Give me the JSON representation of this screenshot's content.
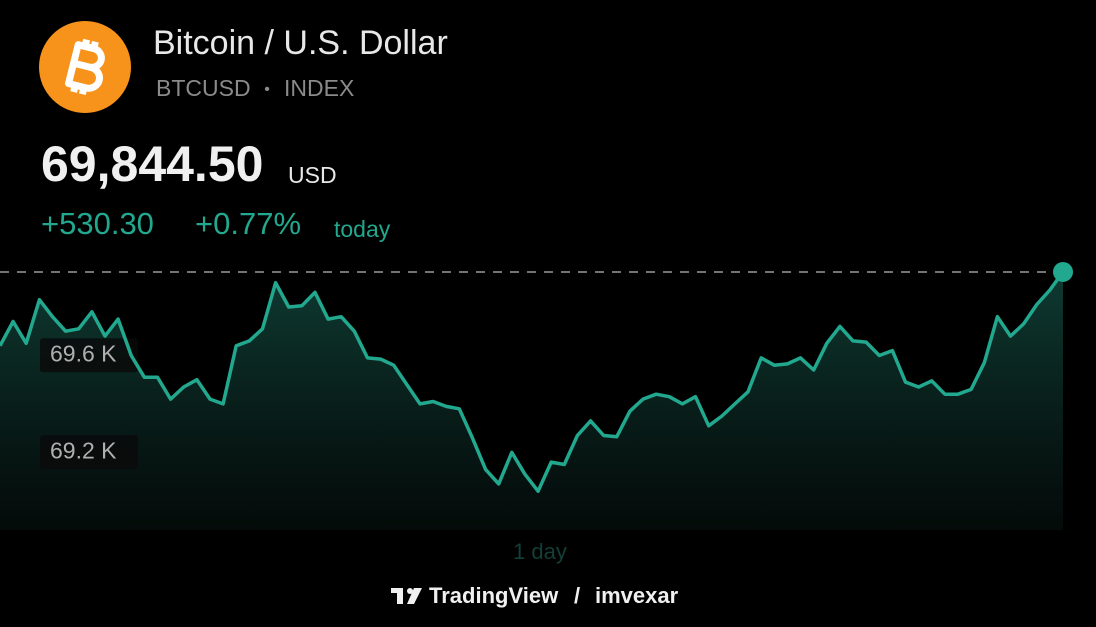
{
  "header": {
    "title": "Bitcoin / U.S. Dollar",
    "symbol": "BTCUSD",
    "separator": "•",
    "exchange": "INDEX",
    "price": "69,844.50",
    "currency": "USD",
    "change": "+530.30",
    "change_percent": "+0.77%",
    "period": "today"
  },
  "chart_data": {
    "type": "line",
    "color": "#22a88e",
    "range_label": "1 day",
    "values": [
      69540,
      69640,
      69550,
      69730,
      69660,
      69600,
      69610,
      69680,
      69580,
      69650,
      69500,
      69410,
      69410,
      69320,
      69370,
      69400,
      69320,
      69300,
      69540,
      69560,
      69610,
      69800,
      69700,
      69705,
      69760,
      69650,
      69660,
      69600,
      69490,
      69485,
      69460,
      69380,
      69300,
      69310,
      69290,
      69280,
      69160,
      69030,
      68970,
      69100,
      69010,
      68940,
      69060,
      69050,
      69170,
      69230,
      69170,
      69165,
      69270,
      69320,
      69340,
      69330,
      69300,
      69330,
      69210,
      69250,
      69300,
      69350,
      69490,
      69460,
      69465,
      69490,
      69440,
      69550,
      69620,
      69560,
      69555,
      69500,
      69520,
      69390,
      69370,
      69395,
      69340,
      69340,
      69360,
      69470,
      69660,
      69580,
      69630,
      69710,
      69770,
      69844.5
    ],
    "ylim": [
      68780,
      69935
    ],
    "yticks": [
      {
        "value": 69600,
        "label": "69.6 K"
      },
      {
        "value": 69200,
        "label": "69.2 K"
      }
    ]
  },
  "footer": {
    "brand": "TradingView",
    "separator": "/",
    "author": "imvexar"
  }
}
